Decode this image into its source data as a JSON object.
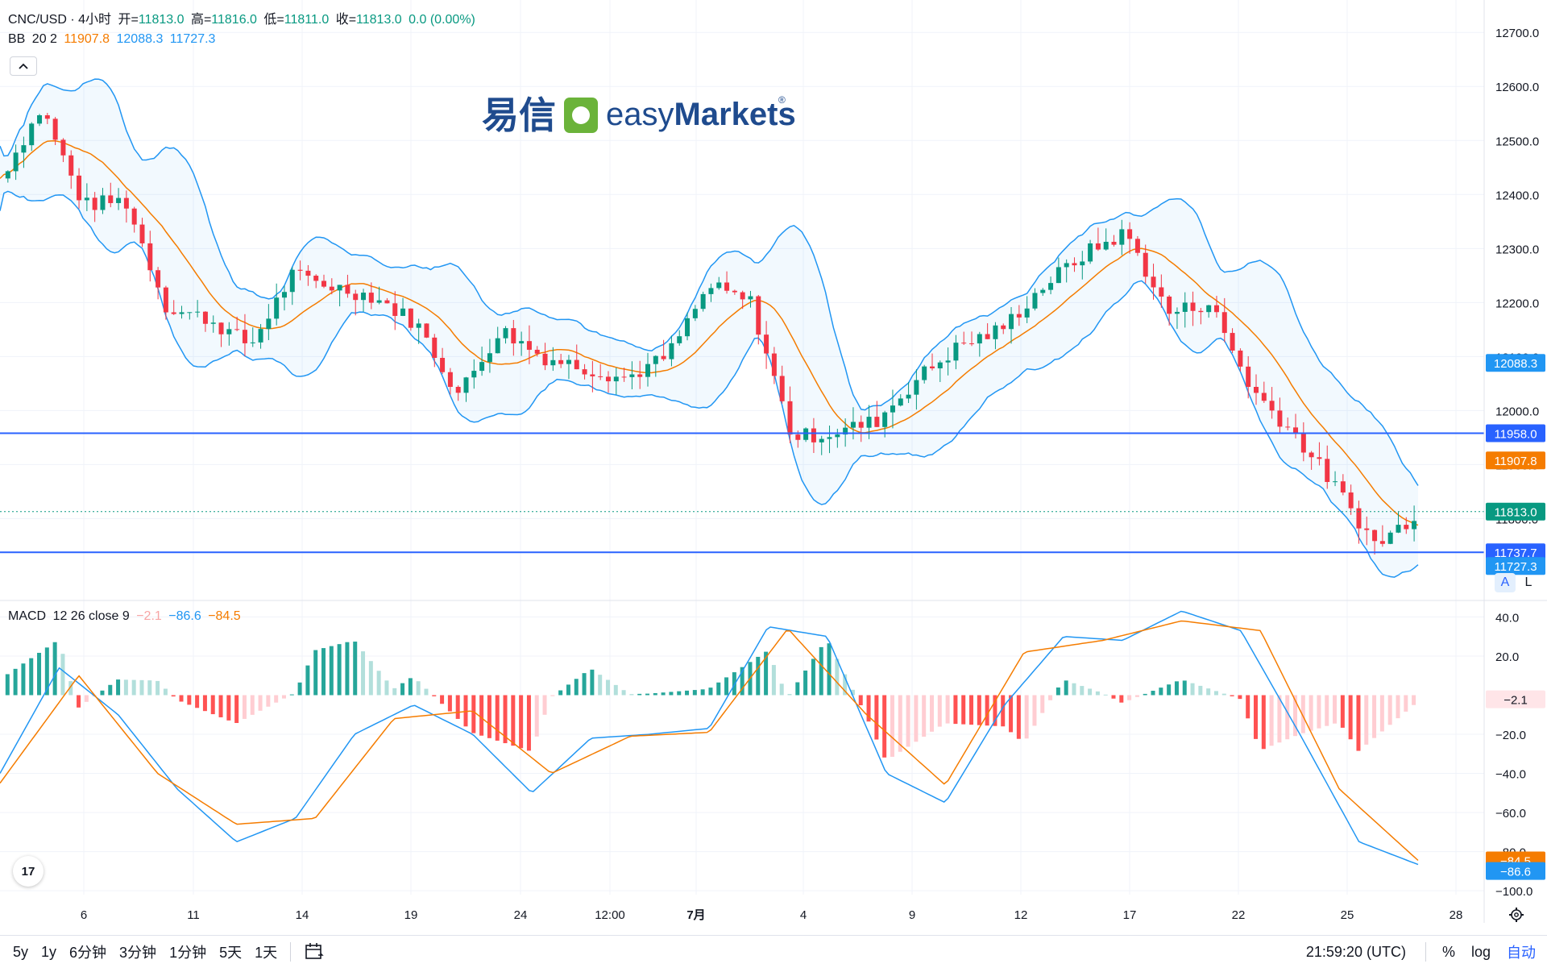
{
  "header": {
    "symbol": "CNC/USD · 4小时",
    "open_label": "开=",
    "open": "11813.0",
    "high_label": "高=",
    "high": "11816.0",
    "low_label": "低=",
    "low": "11811.0",
    "close_label": "收=",
    "close": "11813.0",
    "change": "0.0 (0.00%)"
  },
  "bb_legend": {
    "name": "BB",
    "params": "20 2",
    "basis": "11907.8",
    "upper": "12088.3",
    "lower": "11727.3"
  },
  "macd_legend": {
    "name": "MACD",
    "params": "12 26 close 9",
    "hist": "−2.1",
    "macd": "−86.6",
    "signal": "−84.5"
  },
  "watermark": {
    "cn": "易信",
    "brand_light": "easy",
    "brand_bold": "Markets",
    "registered": "®"
  },
  "price_axis": {
    "ticks": [
      "12700.0",
      "12600.0",
      "12500.0",
      "12400.0",
      "12300.0",
      "12200.0",
      "12100.0",
      "12000.0",
      "11900.0",
      "11800.0"
    ]
  },
  "macd_axis": {
    "ticks": [
      "40.0",
      "20.0",
      "−20.0",
      "−40.0",
      "−60.0",
      "−80.0",
      "−100.0"
    ]
  },
  "badges": {
    "upper": "12088.3",
    "level1": "11958.0",
    "basis": "11907.8",
    "last": "11813.0",
    "level2": "11737.7",
    "lower": "11727.3",
    "hist": "−2.1",
    "signal": "−84.5",
    "macd": "−86.6"
  },
  "time_axis": {
    "labels": [
      "6",
      "11",
      "14",
      "19",
      "24",
      "12:00",
      "7月",
      "4",
      "9",
      "12",
      "17",
      "22",
      "25",
      "28"
    ]
  },
  "toolbar": {
    "timeframes": [
      "5y",
      "1y",
      "6分钟",
      "3分钟",
      "1分钟",
      "5天",
      "1天"
    ],
    "time": "21:59:20 (UTC)",
    "percent": "%",
    "log": "log",
    "auto": "自动"
  },
  "scale_buttons": {
    "a": "A",
    "l": "L"
  },
  "colors": {
    "up": "#089981",
    "down": "#f23645",
    "bb": "#2196f3",
    "basis": "#f57c00",
    "level": "#2962ff",
    "hist_up_strong": "#26a69a",
    "hist_up_weak": "#b2dfdb",
    "hist_down_strong": "#ff5252",
    "hist_down_weak": "#ffcdd2"
  },
  "chart_data": [
    {
      "type": "candlestick",
      "title": "CNC/USD · 4小时",
      "timeframe": "4小时",
      "ylim": [
        11650,
        12760
      ],
      "last": {
        "open": 11813.0,
        "high": 11816.0,
        "low": 11811.0,
        "close": 11813.0
      },
      "horizontal_levels": [
        11958.0,
        11737.7
      ],
      "bollinger": {
        "length": 20,
        "mult": 2,
        "basis": 11907.8,
        "upper": 12088.3,
        "lower": 11727.3
      },
      "close_path": [
        {
          "x": "5",
          "y": 12430
        },
        {
          "x": "6",
          "y": 12560
        },
        {
          "x": "7",
          "y": 12380
        },
        {
          "x": "10",
          "y": 12390
        },
        {
          "x": "11",
          "y": 12190
        },
        {
          "x": "13",
          "y": 12170
        },
        {
          "x": "14",
          "y": 12120
        },
        {
          "x": "14b",
          "y": 12250
        },
        {
          "x": "18",
          "y": 12230
        },
        {
          "x": "19",
          "y": 12210
        },
        {
          "x": "21",
          "y": 12160
        },
        {
          "x": "23",
          "y": 12030
        },
        {
          "x": "24",
          "y": 12150
        },
        {
          "x": "26",
          "y": 12100
        },
        {
          "x": "12:00",
          "y": 12080
        },
        {
          "x": "7月",
          "y": 12060
        },
        {
          "x": "1b",
          "y": 12100
        },
        {
          "x": "2",
          "y": 12230
        },
        {
          "x": "4",
          "y": 12200
        },
        {
          "x": "5",
          "y": 11950
        },
        {
          "x": "7",
          "y": 11960
        },
        {
          "x": "9",
          "y": 11980
        },
        {
          "x": "10",
          "y": 12060
        },
        {
          "x": "12",
          "y": 12120
        },
        {
          "x": "15",
          "y": 12150
        },
        {
          "x": "17",
          "y": 12230
        },
        {
          "x": "19",
          "y": 12290
        },
        {
          "x": "21",
          "y": 12330
        },
        {
          "x": "22",
          "y": 12180
        },
        {
          "x": "23",
          "y": 12200
        },
        {
          "x": "24",
          "y": 12040
        },
        {
          "x": "25",
          "y": 11960
        },
        {
          "x": "25b",
          "y": 11860
        },
        {
          "x": "26",
          "y": 11750
        },
        {
          "x": "27",
          "y": 11813
        }
      ],
      "x_tick_labels": [
        "6",
        "11",
        "14",
        "19",
        "24",
        "12:00",
        "7月",
        "4",
        "9",
        "12",
        "17",
        "22",
        "25",
        "28"
      ]
    },
    {
      "type": "macd",
      "params": "12 26 close 9",
      "ylim": [
        -102,
        48
      ],
      "values": {
        "histogram": -2.1,
        "macd": -86.6,
        "signal": -84.5
      },
      "macd_path": [
        {
          "x": "5",
          "y": -40
        },
        {
          "x": "6",
          "y": 14
        },
        {
          "x": "8",
          "y": -10
        },
        {
          "x": "11",
          "y": -48
        },
        {
          "x": "12",
          "y": -75
        },
        {
          "x": "14",
          "y": -63
        },
        {
          "x": "16",
          "y": -20
        },
        {
          "x": "19",
          "y": -5
        },
        {
          "x": "21",
          "y": -20
        },
        {
          "x": "24",
          "y": -50
        },
        {
          "x": "26",
          "y": -22
        },
        {
          "x": "12:00",
          "y": -20
        },
        {
          "x": "7月",
          "y": -17
        },
        {
          "x": "3",
          "y": 35
        },
        {
          "x": "4",
          "y": 30
        },
        {
          "x": "6",
          "y": -40
        },
        {
          "x": "9",
          "y": -55
        },
        {
          "x": "11",
          "y": -5
        },
        {
          "x": "14",
          "y": 30
        },
        {
          "x": "17",
          "y": 28
        },
        {
          "x": "19",
          "y": 43
        },
        {
          "x": "22",
          "y": 33
        },
        {
          "x": "23",
          "y": -20
        },
        {
          "x": "25",
          "y": -75
        },
        {
          "x": "27",
          "y": -86.6
        }
      ],
      "signal_path": [
        {
          "x": "5",
          "y": -45
        },
        {
          "x": "7",
          "y": 10
        },
        {
          "x": "11",
          "y": -40
        },
        {
          "x": "12",
          "y": -66
        },
        {
          "x": "14",
          "y": -63
        },
        {
          "x": "17",
          "y": -12
        },
        {
          "x": "20",
          "y": -8
        },
        {
          "x": "24",
          "y": -40
        },
        {
          "x": "12:00",
          "y": -21
        },
        {
          "x": "7月",
          "y": -19
        },
        {
          "x": "4",
          "y": 34
        },
        {
          "x": "6",
          "y": -10
        },
        {
          "x": "9",
          "y": -46
        },
        {
          "x": "14",
          "y": 22
        },
        {
          "x": "17",
          "y": 28
        },
        {
          "x": "19",
          "y": 38
        },
        {
          "x": "22",
          "y": 33
        },
        {
          "x": "25",
          "y": -48
        },
        {
          "x": "27",
          "y": -84.5
        }
      ],
      "x_tick_labels": [
        "6",
        "11",
        "14",
        "19",
        "24",
        "12:00",
        "7月",
        "4",
        "9",
        "12",
        "17",
        "22",
        "25",
        "28"
      ]
    }
  ]
}
